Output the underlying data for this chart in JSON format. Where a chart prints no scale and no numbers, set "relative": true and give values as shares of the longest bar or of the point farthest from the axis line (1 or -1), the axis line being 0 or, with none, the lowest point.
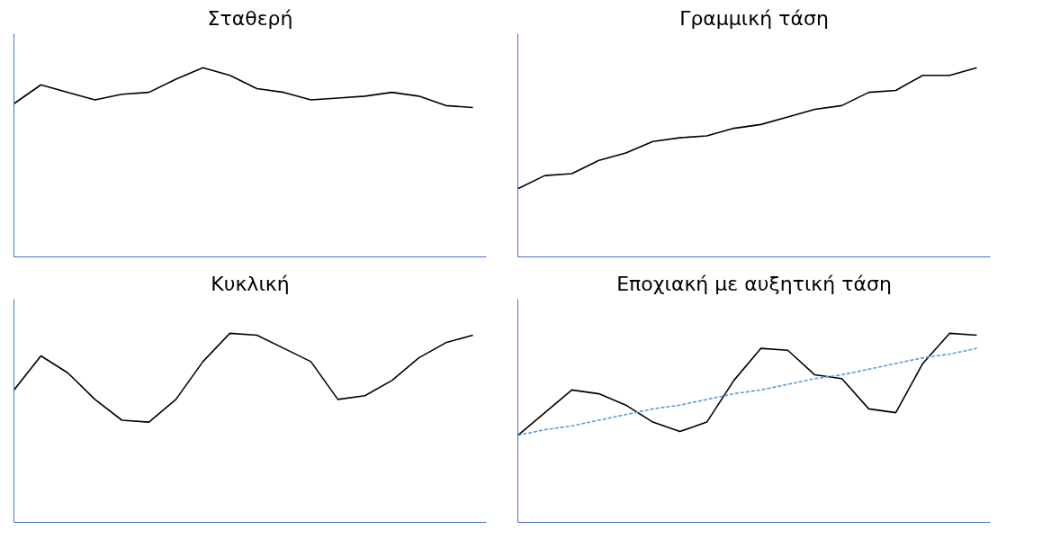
{
  "chart_data": [
    {
      "type": "line",
      "title": "Σταθερή",
      "relative": true,
      "categories": [
        null,
        null,
        null,
        null,
        null,
        null,
        null,
        null,
        null,
        null,
        null,
        null,
        null,
        null,
        null,
        null,
        null,
        null
      ],
      "series": [
        {
          "color": "#000000",
          "line_style": "solid",
          "values": [
            0.81,
            0.91,
            0.87,
            0.83,
            0.86,
            0.87,
            0.94,
            1,
            0.96,
            0.89,
            0.87,
            0.83,
            0.84,
            0.85,
            0.87,
            0.85,
            0.8,
            0.79
          ]
        }
      ]
    },
    {
      "type": "line",
      "title": "Γραμμική τάση",
      "relative": true,
      "categories": [
        null,
        null,
        null,
        null,
        null,
        null,
        null,
        null,
        null,
        null,
        null,
        null,
        null,
        null,
        null,
        null,
        null,
        null
      ],
      "series": [
        {
          "color": "#000000",
          "line_style": "solid",
          "values": [
            0.36,
            0.43,
            0.44,
            0.51,
            0.55,
            0.61,
            0.63,
            0.64,
            0.68,
            0.7,
            0.74,
            0.78,
            0.8,
            0.87,
            0.88,
            0.96,
            0.96,
            1
          ]
        }
      ]
    },
    {
      "type": "line",
      "title": "Κυκλική",
      "relative": true,
      "categories": [
        null,
        null,
        null,
        null,
        null,
        null,
        null,
        null,
        null,
        null,
        null,
        null,
        null,
        null,
        null,
        null,
        null,
        null
      ],
      "series": [
        {
          "color": "#000000",
          "line_style": "solid",
          "values": [
            0.7,
            0.88,
            0.79,
            0.65,
            0.54,
            0.53,
            0.65,
            0.85,
            1,
            0.99,
            0.92,
            0.85,
            0.65,
            0.67,
            0.75,
            0.87,
            0.95,
            0.99
          ]
        }
      ]
    },
    {
      "type": "line",
      "title": "Εποχιακή με αυξητική τάση",
      "relative": true,
      "categories": [
        null,
        null,
        null,
        null,
        null,
        null,
        null,
        null,
        null,
        null,
        null,
        null,
        null,
        null,
        null,
        null,
        null,
        null
      ],
      "series": [
        {
          "color": "#000000",
          "line_style": "solid",
          "values": [
            0.46,
            0.58,
            0.7,
            0.68,
            0.62,
            0.53,
            0.48,
            0.53,
            0.75,
            0.92,
            0.91,
            0.78,
            0.76,
            0.6,
            0.58,
            0.84,
            1,
            0.99
          ]
        },
        {
          "color": "#5b9bd5",
          "line_style": "dashed",
          "values": [
            0.46,
            0.49,
            0.51,
            0.54,
            0.57,
            0.6,
            0.62,
            0.65,
            0.68,
            0.7,
            0.73,
            0.76,
            0.78,
            0.81,
            0.84,
            0.87,
            0.89,
            0.92
          ]
        }
      ]
    }
  ]
}
